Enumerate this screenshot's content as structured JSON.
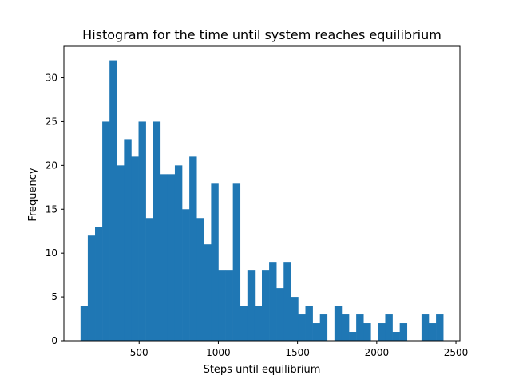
{
  "chart_data": {
    "type": "bar",
    "title": "Histogram for the time until system reaches equilibrium",
    "xlabel": "Steps until equilibrium",
    "ylabel": "Frequency",
    "xlim": [
      25,
      2525
    ],
    "ylim": [
      0,
      33.6
    ],
    "xticks": [
      500,
      1000,
      1500,
      2000,
      2500
    ],
    "yticks": [
      0,
      5,
      10,
      15,
      20,
      25,
      30
    ],
    "grid": false,
    "bar_color": "#1f77b4",
    "bin_edges": [
      130,
      175.8,
      221.6,
      267.4,
      313.2,
      359,
      404.8,
      450.6,
      496.4,
      542.2,
      588,
      633.8,
      679.6,
      725.4,
      771.2,
      817,
      862.8,
      908.6,
      954.4,
      1000.2,
      1046,
      1091.8,
      1137.6,
      1183.4,
      1229.2,
      1275,
      1320.8,
      1366.6,
      1412.4,
      1458.2,
      1504,
      1549.8,
      1595.6,
      1641.4,
      1687.2,
      1733,
      1778.8,
      1824.6,
      1870.4,
      1916.2,
      1962,
      2007.8,
      2053.6,
      2099.4,
      2145.2,
      2191,
      2236.8,
      2282.6,
      2328.4,
      2374.2,
      2420
    ],
    "counts": [
      4,
      12,
      13,
      25,
      32,
      20,
      23,
      21,
      25,
      14,
      25,
      19,
      19,
      20,
      15,
      21,
      14,
      11,
      18,
      8,
      8,
      18,
      4,
      8,
      4,
      8,
      9,
      6,
      9,
      5,
      3,
      4,
      2,
      3,
      0,
      4,
      3,
      1,
      3,
      2,
      0,
      2,
      3,
      1,
      2,
      0,
      0,
      3,
      2,
      3
    ]
  }
}
